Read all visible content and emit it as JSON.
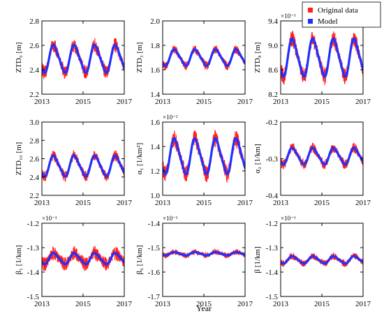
{
  "colors": {
    "original": "#ff2020",
    "model": "#2030ff",
    "axis": "#000000"
  },
  "legend": {
    "entries": [
      "Original data",
      "Model"
    ],
    "placement": "top-right"
  },
  "figure_xlabel": "Year",
  "chart_data": [
    {
      "type": "line",
      "ylabel": "ZTD₀ [m]",
      "exponent": "",
      "x_ticks": [
        "2013",
        "2015",
        "2017"
      ],
      "xlim": [
        2013,
        2017
      ],
      "y_ticks": [
        "2.2",
        "2.4",
        "2.6",
        "2.8"
      ],
      "ylim": [
        2.2,
        2.8
      ],
      "series": [
        {
          "mean": 2.49,
          "amplitude": 0.11,
          "noise": 0.05
        }
      ]
    },
    {
      "type": "line",
      "ylabel": "ZTD₃ [m]",
      "exponent": "",
      "x_ticks": [
        "2013",
        "2015",
        "2017"
      ],
      "xlim": [
        2013,
        2017
      ],
      "y_ticks": [
        "1.4",
        "1.6",
        "1.8",
        "2.0"
      ],
      "ylim": [
        1.4,
        2.0
      ],
      "series": [
        {
          "mean": 1.7,
          "amplitude": 0.065,
          "noise": 0.03
        }
      ]
    },
    {
      "type": "line",
      "ylabel": "ZTD₈ [m]",
      "exponent": "×10⁻¹",
      "x_ticks": [
        "2013",
        "2015",
        "2017"
      ],
      "xlim": [
        2013,
        2017
      ],
      "y_ticks": [
        "8.2",
        "8.6",
        "9.0",
        "9.4"
      ],
      "ylim": [
        8.2,
        9.4
      ],
      "series": [
        {
          "mean": 8.8,
          "amplitude": 0.3,
          "noise": 0.12
        }
      ]
    },
    {
      "type": "line",
      "ylabel": "ZTD₁₀ [m]",
      "exponent": "",
      "x_ticks": [
        "2013",
        "2015",
        "2017"
      ],
      "xlim": [
        2013,
        2017
      ],
      "y_ticks": [
        "2.2",
        "2.4",
        "2.6",
        "2.8",
        "3.0"
      ],
      "ylim": [
        2.2,
        3.0
      ],
      "series": [
        {
          "mean": 2.52,
          "amplitude": 0.11,
          "noise": 0.05
        }
      ]
    },
    {
      "type": "line",
      "ylabel": "α₁ [1/km²]",
      "exponent": "×10⁻²",
      "x_ticks": [
        "2013",
        "2015",
        "2017"
      ],
      "xlim": [
        2013,
        2017
      ],
      "y_ticks": [
        "1.0",
        "1.2",
        "1.4",
        "1.6"
      ],
      "ylim": [
        1.0,
        1.6
      ],
      "series": [
        {
          "mean": 1.32,
          "amplitude": 0.14,
          "noise": 0.06
        }
      ]
    },
    {
      "type": "line",
      "ylabel": "α₂ [1/km]",
      "exponent": "",
      "x_ticks": [
        "2013",
        "2015",
        "2017"
      ],
      "xlim": [
        2013,
        2017
      ],
      "y_ticks": [
        "-0.4",
        "-0.3",
        "-0.2"
      ],
      "ylim": [
        -0.4,
        -0.2
      ],
      "series": [
        {
          "mean": -0.293,
          "amplitude": 0.022,
          "noise": 0.012
        }
      ]
    },
    {
      "type": "line",
      "ylabel": "β₁ [1/km]",
      "exponent": "×10⁻¹",
      "x_ticks": [
        "2013",
        "2015",
        "2017"
      ],
      "xlim": [
        2013,
        2017
      ],
      "y_ticks": [
        "-1.5",
        "-1.4",
        "-1.3",
        "-1.2"
      ],
      "ylim": [
        -1.5,
        -1.2
      ],
      "series": [
        {
          "mean": -1.345,
          "amplitude": 0.022,
          "noise": 0.025
        }
      ]
    },
    {
      "type": "line",
      "ylabel": "β₆ [1/km]",
      "exponent": "×10⁻¹",
      "x_ticks": [
        "2013",
        "2015",
        "2017"
      ],
      "xlim": [
        2013,
        2017
      ],
      "y_ticks": [
        "-1.7",
        "-1.6",
        "-1.5",
        "-1.4"
      ],
      "ylim": [
        -1.7,
        -1.4
      ],
      "series": [
        {
          "mean": -1.525,
          "amplitude": 0.007,
          "noise": 0.01
        }
      ]
    },
    {
      "type": "line",
      "ylabel": "β [1/km]",
      "exponent": "×10⁻¹",
      "x_ticks": [
        "2013",
        "2015",
        "2017"
      ],
      "xlim": [
        2013,
        2017
      ],
      "y_ticks": [
        "-1.5",
        "-1.4",
        "-1.3",
        "-1.2"
      ],
      "ylim": [
        -1.5,
        -1.2
      ],
      "series": [
        {
          "mean": -1.35,
          "amplitude": 0.015,
          "noise": 0.012
        }
      ]
    }
  ]
}
